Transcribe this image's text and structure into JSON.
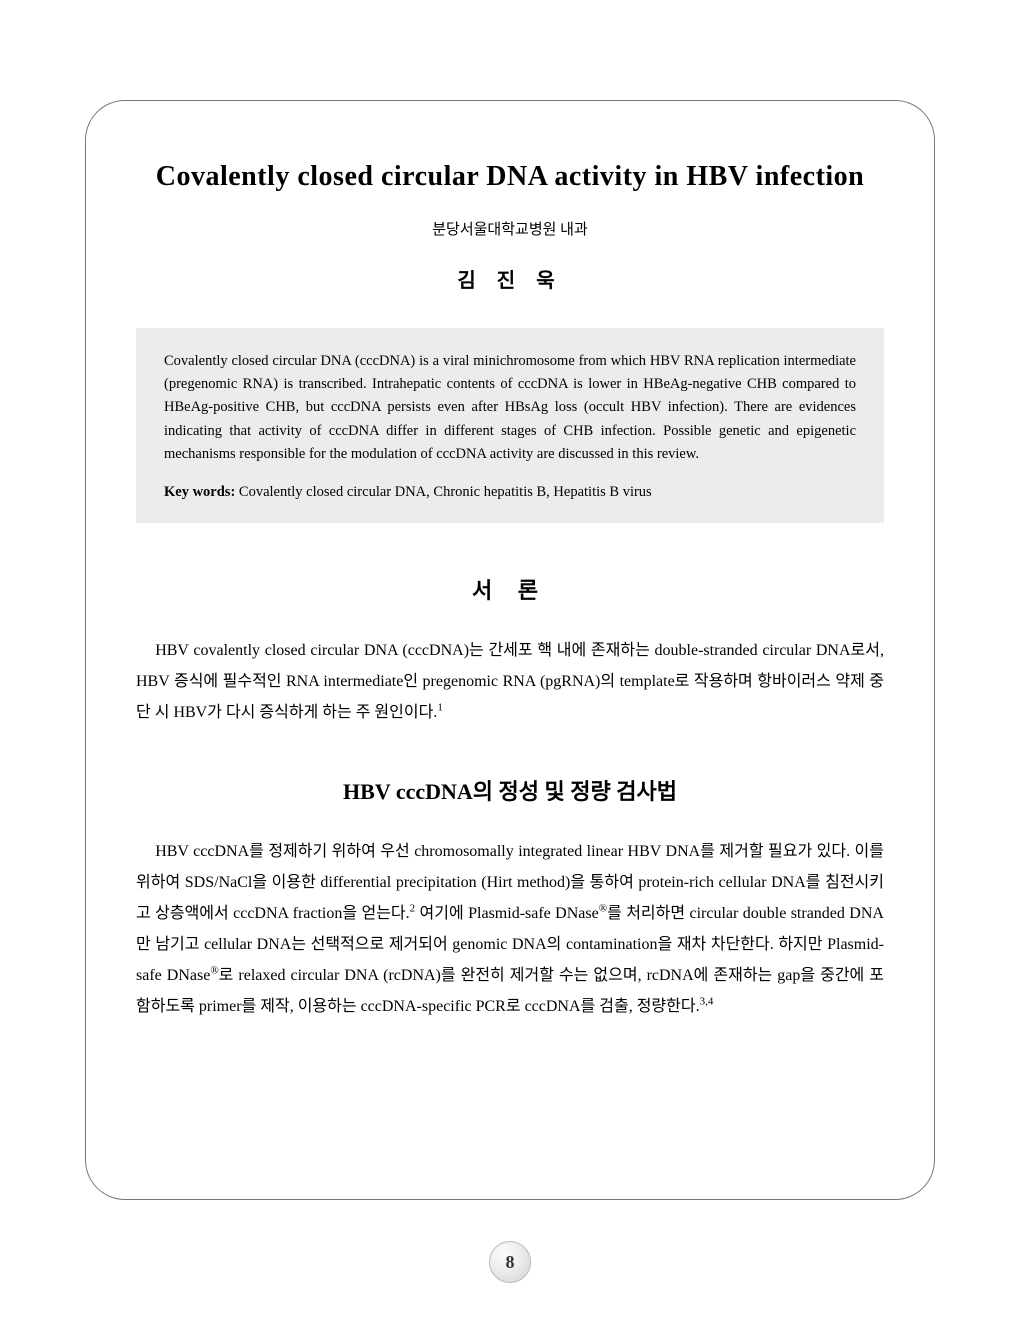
{
  "title": "Covalently closed circular DNA activity in HBV infection",
  "affiliation": "분당서울대학교병원 내과",
  "author": "김 진 욱",
  "abstract": {
    "text": "Covalently closed circular DNA (cccDNA) is a viral minichromosome from which HBV RNA replication intermediate (pregenomic RNA) is transcribed. Intrahepatic contents of cccDNA is lower in HBeAg-negative CHB compared to HBeAg-positive CHB, but cccDNA persists even after HBsAg loss (occult HBV infection). There are evidences indicating that activity of cccDNA differ in different stages of CHB infection. Possible genetic and epigenetic mechanisms responsible for the modulation of cccDNA activity are discussed in this review.",
    "keywords_label": "Key words:",
    "keywords": " Covalently closed circular DNA, Chronic hepatitis B, Hepatitis B virus"
  },
  "sections": {
    "intro_heading": "서   론",
    "intro_body": "HBV covalently closed circular DNA (cccDNA)는 간세포 핵 내에 존재하는 double-stranded circular DNA로서, HBV 증식에 필수적인 RNA intermediate인 pregenomic RNA (pgRNA)의 template로 작용하며 항바이러스 약제 중단 시 HBV가 다시 증식하게 하는 주 원인이다.",
    "intro_ref": "1",
    "methods_heading": "HBV cccDNA의 정성 및 정량 검사법",
    "methods_body_1": "HBV cccDNA를 정제하기 위하여 우선 chromosomally integrated linear HBV DNA를 제거할 필요가 있다. 이를 위하여 SDS/NaCl을 이용한 differential precipitation (Hirt method)을 통하여 protein-rich cellular DNA를 침전시키고 상층액에서 cccDNA fraction을 얻는다.",
    "methods_ref_1": "2",
    "methods_body_2": " 여기에 Plasmid-safe DNase",
    "reg_mark": "®",
    "methods_body_3": "를 처리하면 circular double stranded DNA만 남기고 cellular DNA는 선택적으로 제거되어 genomic DNA의 contamination을 재차 차단한다. 하지만 Plasmid-safe DNase",
    "methods_body_4": "로 relaxed circular DNA (rcDNA)를 완전히 제거할 수는 없으며, rcDNA에 존재하는 gap을 중간에 포함하도록 primer를 제작, 이용하는 cccDNA-specific PCR로 cccDNA를 검출, 정량한다.",
    "methods_ref_2": "3,4"
  },
  "page_number": "8",
  "colors": {
    "page_bg": "#ffffff",
    "abstract_bg": "#ececec",
    "text": "#000000",
    "border": "#777777"
  },
  "typography": {
    "title_size": 28,
    "body_size": 16,
    "abstract_size": 14.5,
    "author_size": 20
  }
}
